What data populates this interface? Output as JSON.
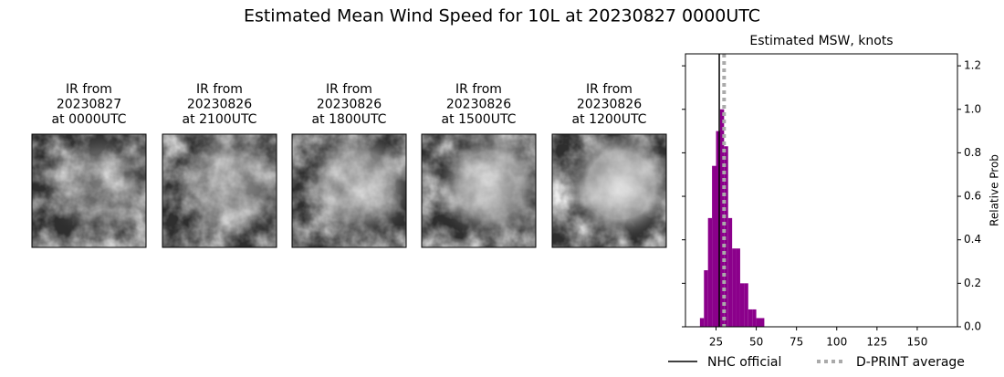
{
  "title": "Estimated Mean Wind Speed for 10L at 20230827 0000UTC",
  "panels": [
    {
      "lines": [
        "IR from",
        "20230827",
        "at 0000UTC"
      ]
    },
    {
      "lines": [
        "IR from",
        "20230826",
        "at 2100UTC"
      ]
    },
    {
      "lines": [
        "IR from",
        "20230826",
        "at 1800UTC"
      ]
    },
    {
      "lines": [
        "IR from",
        "20230826",
        "at 1500UTC"
      ]
    },
    {
      "lines": [
        "IR from",
        "20230826",
        "at 1200UTC"
      ]
    }
  ],
  "chart_data": {
    "type": "histogram",
    "title": "Estimated MSW, knots",
    "y_label": "Relative Prob",
    "color": "#8b008b",
    "bins": [
      15,
      17.5,
      20,
      22.5,
      25,
      27.5,
      30,
      32.5,
      35,
      37.5,
      40,
      42.5,
      45,
      47.5,
      50,
      52.5,
      55
    ],
    "values": [
      0.04,
      0.26,
      0.5,
      0.74,
      0.9,
      1.0,
      0.83,
      0.5,
      0.36,
      0.36,
      0.2,
      0.2,
      0.08,
      0.08,
      0.04,
      0.04
    ],
    "xlim": [
      6,
      175
    ],
    "xticks": [
      25,
      50,
      75,
      100,
      125,
      150
    ],
    "ylim": [
      0,
      1.255
    ],
    "yticks": [
      {
        "value": 0,
        "label": "0.0"
      },
      {
        "value": 0.2,
        "label": "0.2"
      },
      {
        "value": 0.4,
        "label": "0.4"
      },
      {
        "value": 0.6,
        "label": "0.6"
      },
      {
        "value": 0.8,
        "label": "0.8"
      },
      {
        "value": 1.0,
        "label": "1.0"
      },
      {
        "value": 1.2,
        "label": "1.2"
      }
    ],
    "lines": [
      {
        "name": "NHC official",
        "value": 27,
        "color": "#000000",
        "style": "solid"
      },
      {
        "name": "D-PRINT average",
        "value": 30,
        "color": "#aaaaaa",
        "style": "dotted"
      }
    ]
  }
}
